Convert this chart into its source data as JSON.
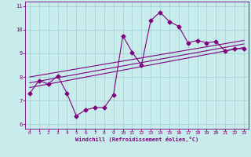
{
  "title": "",
  "xlabel": "Windchill (Refroidissement éolien,°C)",
  "ylabel": "",
  "bg_color": "#c8ecec",
  "grid_color": "#9ecfcf",
  "line_color": "#800080",
  "xlim": [
    -0.5,
    23.5
  ],
  "ylim": [
    5.8,
    11.2
  ],
  "xticks": [
    0,
    1,
    2,
    3,
    4,
    5,
    6,
    7,
    8,
    9,
    10,
    11,
    12,
    13,
    14,
    15,
    16,
    17,
    18,
    19,
    20,
    21,
    22,
    23
  ],
  "yticks": [
    6,
    7,
    8,
    9,
    10,
    11
  ],
  "series1": [
    7.3,
    7.85,
    7.7,
    8.05,
    7.3,
    6.35,
    6.6,
    6.7,
    6.7,
    7.25,
    9.75,
    9.05,
    8.5,
    10.4,
    10.75,
    10.35,
    10.15,
    9.45,
    9.55,
    9.45,
    9.5,
    9.1,
    9.2,
    9.2
  ],
  "series2_x": [
    0,
    23
  ],
  "series2_y": [
    7.55,
    9.25
  ],
  "series3_x": [
    0,
    23
  ],
  "series3_y": [
    7.75,
    9.4
  ],
  "series4_x": [
    0,
    23
  ],
  "series4_y": [
    8.0,
    9.55
  ],
  "marker": "D",
  "markersize": 2.5,
  "linewidth": 0.8
}
